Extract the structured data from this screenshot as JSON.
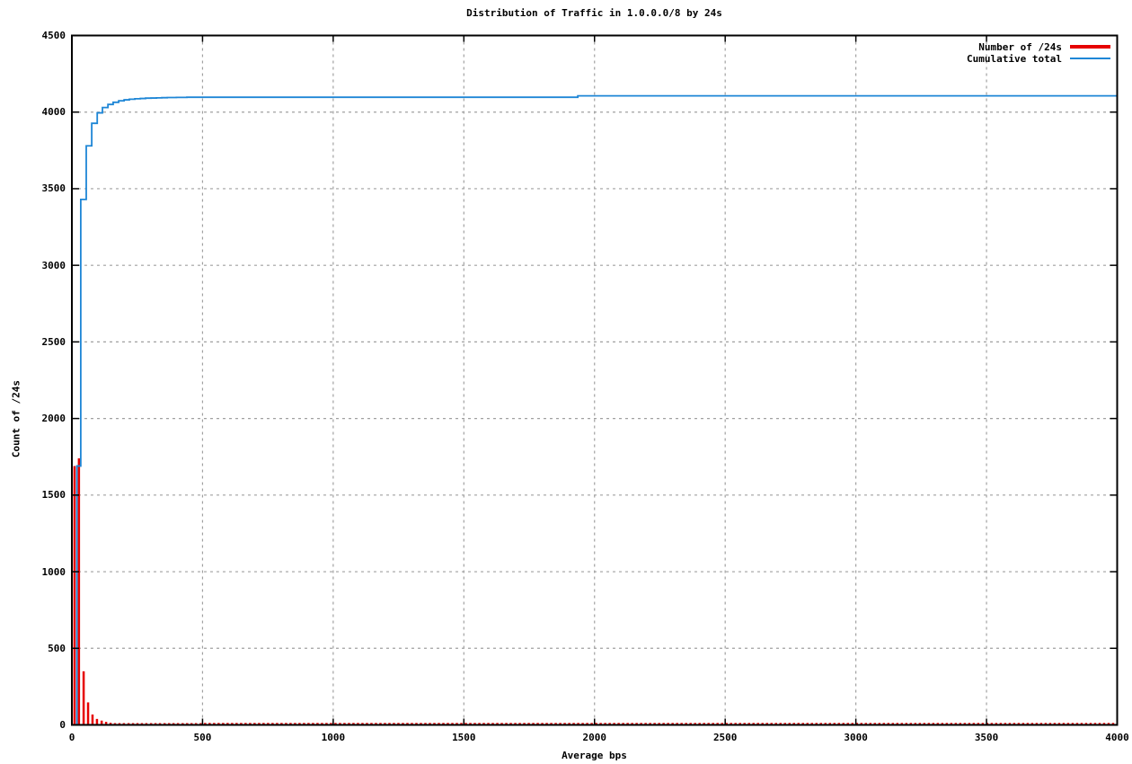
{
  "title": "Distribution of Traffic in 1.0.0.0/8 by 24s",
  "chart_data": {
    "type": "bar",
    "subtype": "histogram-impulses with cumulative step line (gnuplot style)",
    "title": "Distribution of Traffic in 1.0.0.0/8 by 24s",
    "xlabel": "Average bps",
    "ylabel": "Count of /24s",
    "xlim": [
      0,
      4000
    ],
    "ylim": [
      0,
      4500
    ],
    "x_tick_labels": [
      "0",
      "500",
      "1000",
      "1500",
      "2000",
      "2500",
      "3000",
      "3500",
      "4000"
    ],
    "y_tick_labels": [
      "0",
      "500",
      "1000",
      "1500",
      "2000",
      "2500",
      "3000",
      "3500",
      "4000",
      "4500"
    ],
    "grid": "dotted gray grid at every major tick, both axes, ticks mirrored on all four borders",
    "colors": {
      "bars": "#e60000",
      "cumulative": "#1e86d6",
      "grid": "#a0a0a0",
      "axis": "#000000",
      "background": "#ffffff",
      "text": "#000000"
    },
    "legend": {
      "position": "inside top-right",
      "entries": [
        {
          "label": "Number of /24s",
          "color": "#e60000",
          "style": "thick-line"
        },
        {
          "label": "Cumulative total",
          "color": "#1e86d6",
          "style": "thin-line"
        }
      ]
    },
    "series": [
      {
        "name": "Number of /24s",
        "type": "impulses",
        "color": "#e60000",
        "points": [
          [
            10,
            1690
          ],
          [
            27,
            1740
          ],
          [
            45,
            350
          ],
          [
            62,
            147
          ],
          [
            79,
            68
          ],
          [
            96,
            39
          ],
          [
            114,
            28
          ],
          [
            131,
            20
          ],
          [
            148,
            14
          ],
          [
            165,
            10
          ],
          [
            182,
            8
          ],
          [
            199,
            7
          ],
          [
            217,
            6
          ],
          [
            234,
            5
          ],
          [
            251,
            4
          ],
          [
            268,
            4
          ],
          [
            285,
            3
          ],
          [
            303,
            3
          ],
          [
            320,
            3
          ],
          [
            337,
            2
          ],
          [
            355,
            2
          ],
          [
            372,
            2
          ],
          [
            389,
            2
          ],
          [
            406,
            2
          ],
          [
            424,
            1
          ],
          [
            441,
            1
          ],
          [
            458,
            1
          ],
          [
            475,
            1
          ],
          [
            493,
            1
          ]
        ],
        "tail_marks": {
          "from_bps": 510,
          "to_bps": 3995,
          "step_bps": 17.2,
          "count_each": 1
        }
      },
      {
        "name": "Cumulative total",
        "type": "step-line",
        "color": "#1e86d6",
        "start": [
          19,
          0
        ],
        "steps": [
          [
            19,
            1690
          ],
          [
            34,
            3430
          ],
          [
            55,
            3780
          ],
          [
            76,
            3927
          ],
          [
            97,
            3995
          ],
          [
            117,
            4030
          ],
          [
            138,
            4050
          ],
          [
            158,
            4064
          ],
          [
            179,
            4074
          ],
          [
            200,
            4080
          ],
          [
            220,
            4084
          ],
          [
            241,
            4087
          ],
          [
            262,
            4089
          ],
          [
            282,
            4091
          ],
          [
            303,
            4092
          ],
          [
            324,
            4093
          ],
          [
            344,
            4094
          ],
          [
            365,
            4095
          ],
          [
            400,
            4096
          ],
          [
            440,
            4097
          ],
          [
            1936,
            4106
          ]
        ],
        "end_x": 4000,
        "final_value": 4106
      }
    ]
  }
}
